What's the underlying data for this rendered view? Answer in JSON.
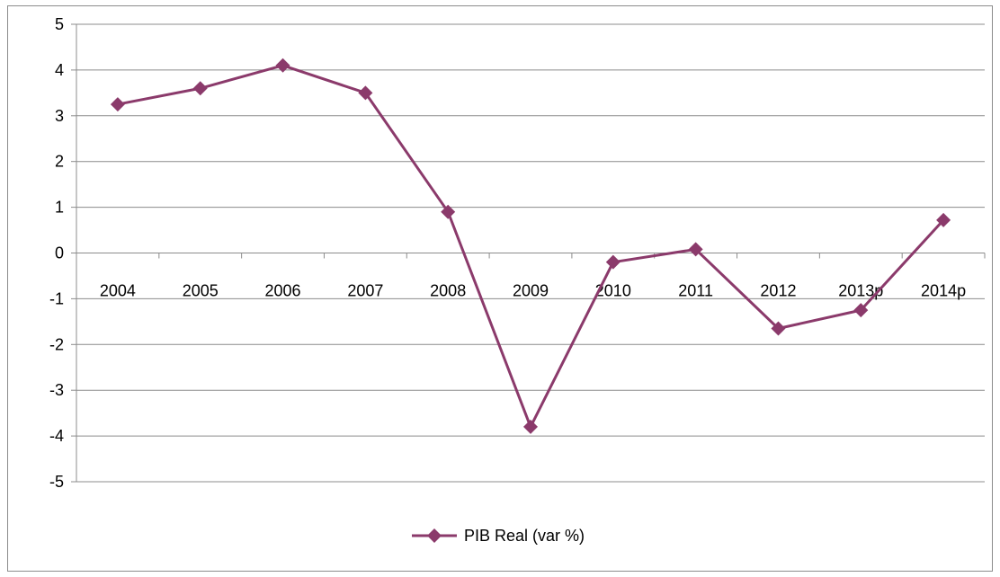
{
  "chart_data": {
    "type": "line",
    "title": "",
    "xlabel": "",
    "ylabel": "",
    "categories": [
      "2004",
      "2005",
      "2006",
      "2007",
      "2008",
      "2009",
      "2010",
      "2011",
      "2012",
      "2013p",
      "2014p"
    ],
    "series": [
      {
        "name": "PIB Real (var %)",
        "color": "#8b3a6b",
        "marker": "diamond",
        "values": [
          3.25,
          3.6,
          4.1,
          3.5,
          0.9,
          -3.8,
          -0.2,
          0.08,
          -1.65,
          -1.25,
          0.72
        ]
      }
    ],
    "ylim": [
      -5,
      5
    ],
    "yticks": [
      "5",
      "4",
      "3",
      "2",
      "1",
      "0",
      "-1",
      "-2",
      "-3",
      "-4",
      "-5"
    ],
    "grid": true,
    "legend": "bottom"
  }
}
